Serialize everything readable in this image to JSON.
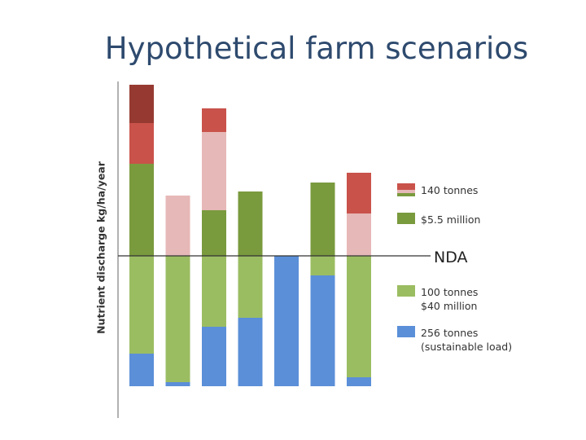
{
  "chart_data": {
    "type": "bar",
    "stacked": true,
    "title": "Hypothetical farm scenarios",
    "xlabel": "",
    "ylabel": "Nutrient discharge kg/ha/year",
    "x_tick_labels": false,
    "reference_line": {
      "label": "NDA"
    },
    "segment_colors": {
      "blue": "#5b8fd8",
      "light_green": "#9bbd62",
      "dark_green": "#7a9a3e",
      "pink": "#e6b8b7",
      "red": "#c9524a",
      "dark_red": "#963a31"
    },
    "bars": [
      {
        "segments": [
          {
            "color": "blue",
            "height": 40
          },
          {
            "color": "light_green",
            "height": 120
          },
          {
            "color": "dark_green",
            "height": 113
          },
          {
            "color": "red",
            "height": 50
          },
          {
            "color": "dark_red",
            "height": 47
          }
        ]
      },
      {
        "segments": [
          {
            "color": "blue",
            "height": 5
          },
          {
            "color": "light_green",
            "height": 155
          },
          {
            "color": "pink",
            "height": 74
          }
        ]
      },
      {
        "segments": [
          {
            "color": "blue",
            "height": 73
          },
          {
            "color": "light_green",
            "height": 87
          },
          {
            "color": "dark_green",
            "height": 56
          },
          {
            "color": "pink",
            "height": 96
          },
          {
            "color": "red",
            "height": 29
          }
        ]
      },
      {
        "segments": [
          {
            "color": "blue",
            "height": 84
          },
          {
            "color": "light_green",
            "height": 76
          },
          {
            "color": "dark_green",
            "height": 79
          }
        ]
      },
      {
        "segments": [
          {
            "color": "blue",
            "height": 160
          }
        ]
      },
      {
        "segments": [
          {
            "color": "blue",
            "height": 136
          },
          {
            "color": "light_green",
            "height": 24
          },
          {
            "color": "dark_green",
            "height": 90
          }
        ]
      },
      {
        "segments": [
          {
            "color": "blue",
            "height": 11
          },
          {
            "color": "light_green",
            "height": 149
          },
          {
            "color": "pink",
            "height": 52
          },
          {
            "color": "red",
            "height": 50
          }
        ]
      }
    ],
    "legend": [
      {
        "swatch": [
          "red",
          "pink",
          "dark_green"
        ],
        "lines": [
          "140 tonnes"
        ]
      },
      {
        "swatch": [
          "dark_green"
        ],
        "lines": [
          "$5.5 million"
        ]
      },
      {
        "swatch": [
          "light_green"
        ],
        "lines": [
          "100 tonnes",
          "$40 million"
        ]
      },
      {
        "swatch": [
          "blue"
        ],
        "lines": [
          "256 tonnes",
          "(sustainable load)"
        ]
      }
    ]
  }
}
